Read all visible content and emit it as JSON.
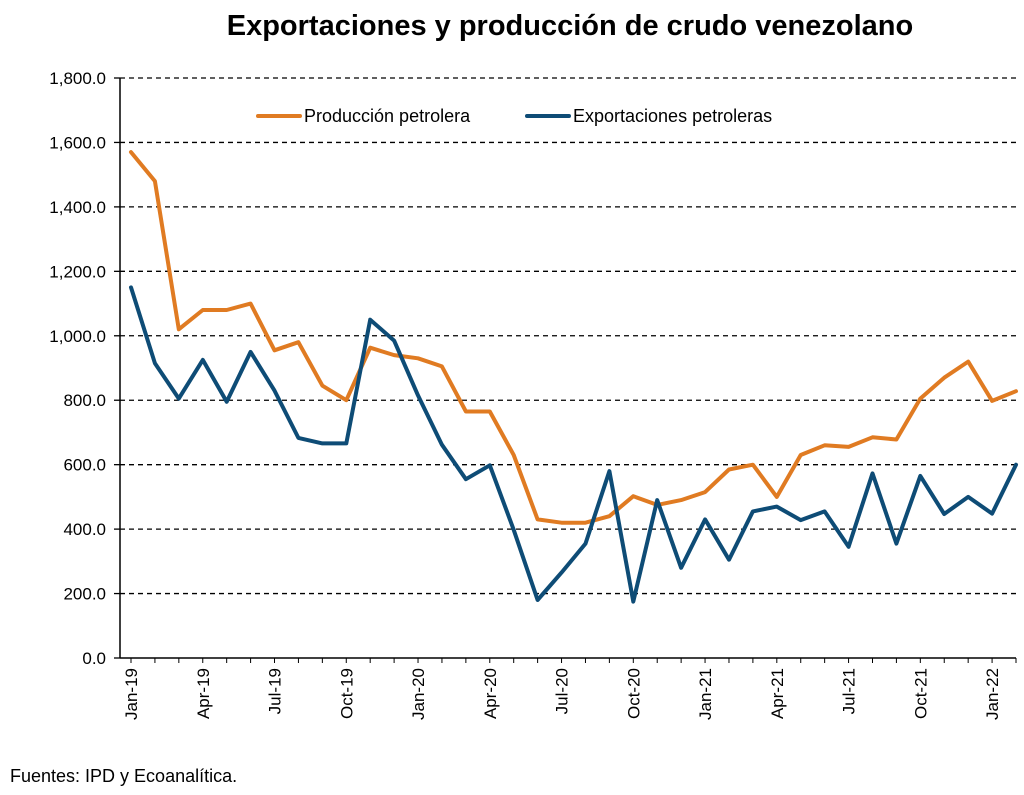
{
  "chart_data": {
    "type": "line",
    "title": "Exportaciones y producción de crudo venezolano",
    "source": "Fuentes: IPD y Ecoanalítica.",
    "xlabel": "",
    "ylabel": "",
    "ylim": [
      0,
      1800
    ],
    "y_ticks": [
      "0.0",
      "200.0",
      "400.0",
      "600.0",
      "800.0",
      "1,000.0",
      "1,200.0",
      "1,400.0",
      "1,600.0",
      "1,800.0"
    ],
    "x": [
      "Jan-19",
      "Feb-19",
      "Mar-19",
      "Apr-19",
      "May-19",
      "Jun-19",
      "Jul-19",
      "Aug-19",
      "Sep-19",
      "Oct-19",
      "Nov-19",
      "Dec-19",
      "Jan-20",
      "Feb-20",
      "Mar-20",
      "Apr-20",
      "May-20",
      "Jun-20",
      "Jul-20",
      "Aug-20",
      "Sep-20",
      "Oct-20",
      "Nov-20",
      "Dec-20",
      "Jan-21",
      "Feb-21",
      "Mar-21",
      "Apr-21",
      "May-21",
      "Jun-21",
      "Jul-21",
      "Aug-21",
      "Sep-21",
      "Oct-21",
      "Nov-21",
      "Dec-21",
      "Jan-22",
      "Feb-22"
    ],
    "x_tick_labels": [
      {
        "index": 0,
        "label": "Jan-19"
      },
      {
        "index": 3,
        "label": "Apr-19"
      },
      {
        "index": 6,
        "label": "Jul-19"
      },
      {
        "index": 9,
        "label": "Oct-19"
      },
      {
        "index": 12,
        "label": "Jan-20"
      },
      {
        "index": 15,
        "label": "Apr-20"
      },
      {
        "index": 18,
        "label": "Jul-20"
      },
      {
        "index": 21,
        "label": "Oct-20"
      },
      {
        "index": 24,
        "label": "Jan-21"
      },
      {
        "index": 27,
        "label": "Apr-21"
      },
      {
        "index": 30,
        "label": "Jul-21"
      },
      {
        "index": 33,
        "label": "Oct-21"
      },
      {
        "index": 36,
        "label": "Jan-22"
      }
    ],
    "grid": "horizontal-dashed",
    "legend_position": "top",
    "series": [
      {
        "name": "Producción petrolera",
        "color": "#E07B22",
        "values": [
          1570,
          1480,
          1020,
          1080,
          1080,
          1100,
          955,
          980,
          845,
          800,
          963,
          940,
          930,
          905,
          765,
          765,
          630,
          430,
          420,
          420,
          440,
          502,
          475,
          490,
          515,
          585,
          600,
          500,
          630,
          660,
          655,
          685,
          678,
          805,
          870,
          920,
          798,
          828
        ]
      },
      {
        "name": "Exportaciones petroleras",
        "color": "#0E4C76",
        "values": [
          1150,
          915,
          805,
          925,
          795,
          950,
          830,
          683,
          666,
          666,
          1050,
          985,
          815,
          662,
          555,
          598,
          398,
          180,
          265,
          355,
          580,
          175,
          490,
          280,
          430,
          305,
          455,
          470,
          428,
          455,
          345,
          573,
          355,
          565,
          447,
          500,
          448,
          600
        ]
      }
    ]
  }
}
